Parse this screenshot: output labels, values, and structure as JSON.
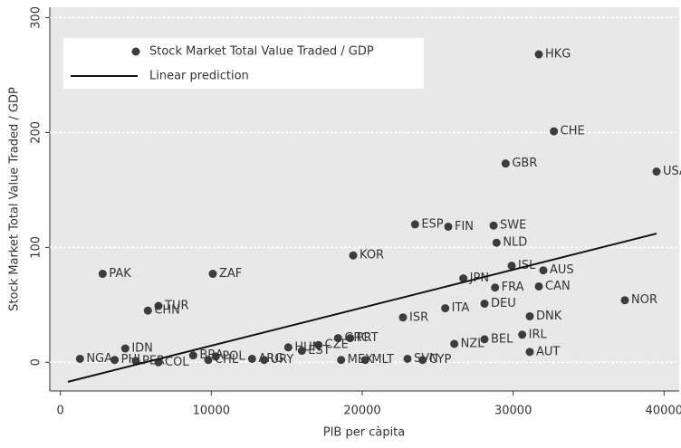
{
  "chart_data": {
    "type": "scatter",
    "x_label": "PIB per càpita",
    "y_label": "Stock Market Total Value Traded / GDP",
    "xlim": [
      -700,
      41000
    ],
    "ylim": [
      -25,
      309
    ],
    "xticks": [
      0,
      10000,
      20000,
      30000,
      40000
    ],
    "yticks": [
      0,
      100,
      200,
      300
    ],
    "grid": true,
    "legend": "upper left",
    "series": [
      {
        "name": "Stock Market Total Value Traded / GDP",
        "color": "#3c3c3c",
        "type": "scatter",
        "labels": [
          "HKG",
          "CHE",
          "GBR",
          "USA",
          "ESP",
          "FIN",
          "SWE",
          "NLD",
          "KOR",
          "PAK",
          "ZAF",
          "ISL",
          "AUS",
          "JPN",
          "FRA",
          "CAN",
          "DEU",
          "NOR",
          "ITA",
          "DNK",
          "ISR",
          "TUR",
          "CHN",
          "IRL",
          "BEL",
          "NZL",
          "AUT",
          "PRT",
          "GRC",
          "CZE",
          "HUN",
          "EST",
          "MLT",
          "MEX",
          "SVN",
          "CYP",
          "IDN",
          "NGA",
          "PHL",
          "PER",
          "COL",
          "BRA",
          "POL",
          "CHL",
          "ARG",
          "URY"
        ],
        "x": [
          31700,
          32700,
          29500,
          39500,
          23500,
          25700,
          28700,
          28900,
          19400,
          2800,
          10100,
          29900,
          32000,
          26700,
          28800,
          31700,
          28100,
          37400,
          25500,
          31100,
          22700,
          6500,
          5800,
          30600,
          28100,
          26100,
          31100,
          19200,
          18400,
          17100,
          15100,
          16000,
          20200,
          18600,
          23000,
          24000,
          4300,
          1300,
          3600,
          5000,
          6500,
          8800,
          10300,
          9800,
          12700,
          13500
        ],
        "values": [
          268,
          201,
          173,
          166,
          120,
          118,
          119,
          104,
          93,
          77,
          77,
          84,
          80,
          73,
          65,
          66,
          51,
          54,
          47,
          40,
          39,
          49,
          45,
          24,
          20,
          16,
          9,
          21,
          21,
          15,
          13,
          10,
          2,
          2,
          3,
          2,
          12,
          3,
          2,
          1,
          0,
          6,
          5,
          2,
          3,
          2
        ]
      },
      {
        "name": "Linear prediction",
        "color": "#111111",
        "type": "line",
        "x": [
          500,
          39500
        ],
        "values": [
          -17,
          112
        ]
      }
    ]
  }
}
